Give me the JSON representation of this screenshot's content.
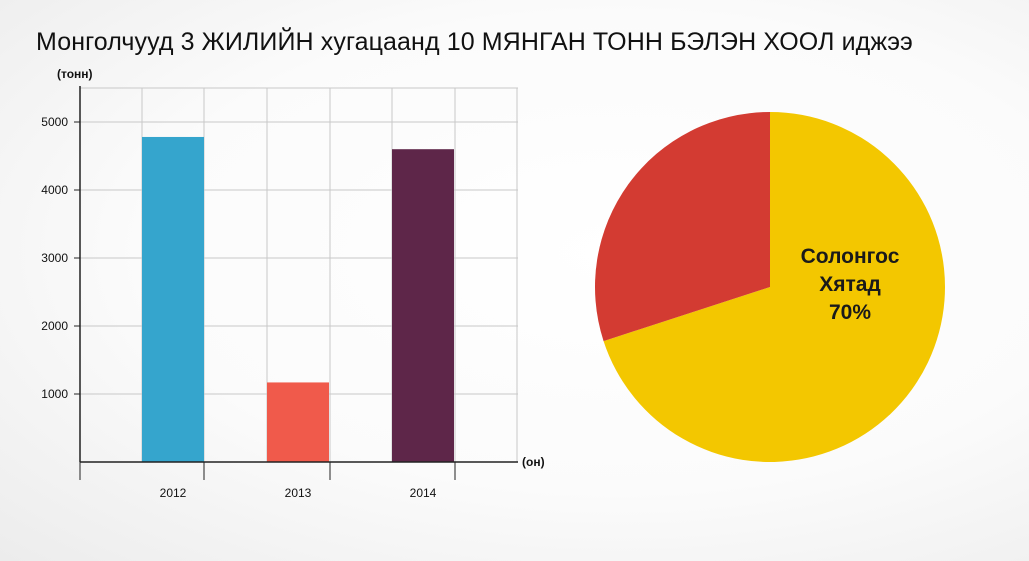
{
  "title": "Монголчууд 3 ЖИЛИЙН хугацаанд 10  МЯНГАН ТОНН БЭЛЭН ХООЛ иджээ",
  "chart_data": [
    {
      "type": "bar",
      "categories": [
        "2012",
        "2013",
        "2014"
      ],
      "values": [
        4780,
        1170,
        4600
      ],
      "colors": [
        "#35a5cd",
        "#f05a4b",
        "#5e2649"
      ],
      "ylabel": "(тонн)",
      "xlabel": "(он)",
      "ylim": [
        0,
        5500
      ],
      "yticks": [
        1000,
        2000,
        3000,
        4000,
        5000
      ],
      "grid": true
    },
    {
      "type": "pie",
      "slices": [
        {
          "label_lines": [
            "Солонгос",
            "Хятад",
            "70%"
          ],
          "value": 70,
          "color": "#f3c700"
        },
        {
          "label_lines": [],
          "value": 30,
          "color": "#d33b32"
        }
      ]
    }
  ]
}
